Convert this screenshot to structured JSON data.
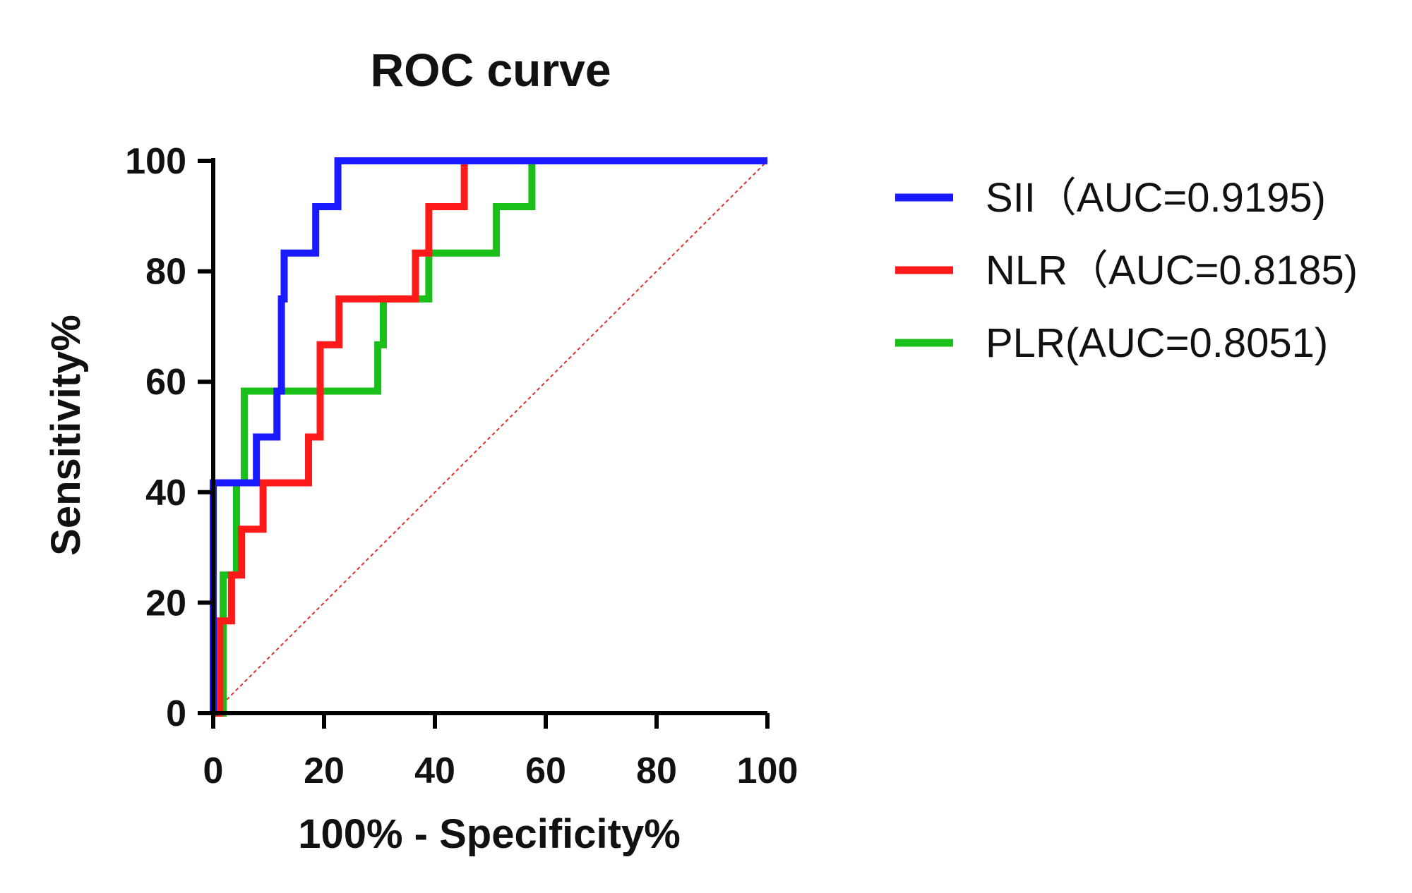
{
  "chart_data": {
    "type": "line",
    "title": "ROC curve",
    "xlabel": "100% - Specificity%",
    "ylabel": "Sensitivity%",
    "xlim": [
      0,
      100
    ],
    "ylim": [
      0,
      100
    ],
    "xticks": [
      0,
      20,
      40,
      60,
      80,
      100
    ],
    "yticks": [
      0,
      20,
      40,
      60,
      80,
      100
    ],
    "grid": false,
    "legend_position": "right",
    "reference_line": {
      "x": [
        0,
        100
      ],
      "y": [
        0,
        100
      ],
      "color": "#e03030",
      "style": "dotted"
    },
    "series": [
      {
        "name": "SII（AUC=0.9195)",
        "color": "#1a1aff",
        "x": [
          0,
          0,
          7.8,
          7.8,
          11.5,
          11.5,
          12.3,
          12.3,
          12.8,
          12.8,
          18.5,
          18.5,
          22.5,
          22.5,
          100
        ],
        "y": [
          0,
          41.7,
          41.7,
          50,
          50,
          58.3,
          58.3,
          75,
          75,
          83.3,
          83.3,
          91.7,
          91.7,
          100,
          100
        ]
      },
      {
        "name": "NLR（AUC=0.8185)",
        "color": "#ff1a1a",
        "x": [
          0,
          1.2,
          1.2,
          3.3,
          3.3,
          5.1,
          5.1,
          9,
          9,
          17.2,
          17.2,
          19.3,
          19.3,
          22.7,
          22.7,
          36.5,
          36.5,
          38.9,
          38.9,
          45.3,
          45.3
        ],
        "y": [
          0,
          0,
          16.7,
          16.7,
          25,
          25,
          33.3,
          33.3,
          41.7,
          41.7,
          50,
          50,
          66.7,
          66.7,
          75,
          75,
          83.3,
          83.3,
          91.7,
          91.7,
          100
        ]
      },
      {
        "name": "PLR(AUC=0.8051)",
        "color": "#1abf1a",
        "x": [
          1,
          1.8,
          1.8,
          4.2,
          4.2,
          5.6,
          5.6,
          29.7,
          29.7,
          30.7,
          30.7,
          38.9,
          38.9,
          51.1,
          51.1,
          57.5,
          57.5
        ],
        "y": [
          0,
          0,
          25,
          25,
          41.7,
          41.7,
          58.3,
          58.3,
          66.7,
          66.7,
          75,
          75,
          83.3,
          83.3,
          91.7,
          91.7,
          100
        ]
      }
    ]
  }
}
